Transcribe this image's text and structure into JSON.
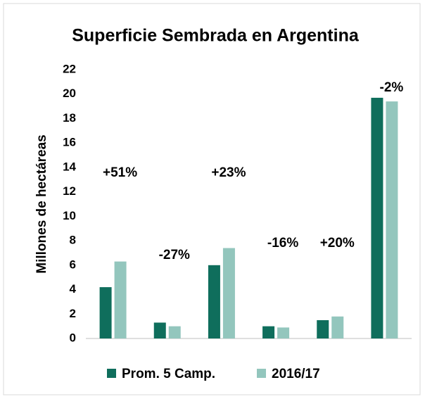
{
  "chart_data": {
    "type": "bar",
    "title": "Superficie Sembrada en Argentina",
    "y_label": "Millones de hectáreas",
    "categories": [
      null,
      null,
      null,
      null,
      null,
      null
    ],
    "series": [
      {
        "name": "Prom. 5 Camp.",
        "color": "#0f6e5c",
        "values": [
          4.2,
          1.3,
          6.0,
          1.0,
          1.5,
          19.7
        ]
      },
      {
        "name": "2016/17",
        "color": "#93c6bd",
        "values": [
          6.3,
          1.0,
          7.4,
          0.9,
          1.8,
          19.4
        ]
      }
    ],
    "annotations": [
      "+51%",
      "-27%",
      "+23%",
      "-16%",
      "+20%",
      "-2%"
    ],
    "ylim": [
      0,
      22
    ],
    "yticks": [
      0,
      2,
      4,
      6,
      8,
      10,
      12,
      14,
      16,
      18,
      20,
      22
    ],
    "grid": false,
    "legend": "bottom"
  }
}
